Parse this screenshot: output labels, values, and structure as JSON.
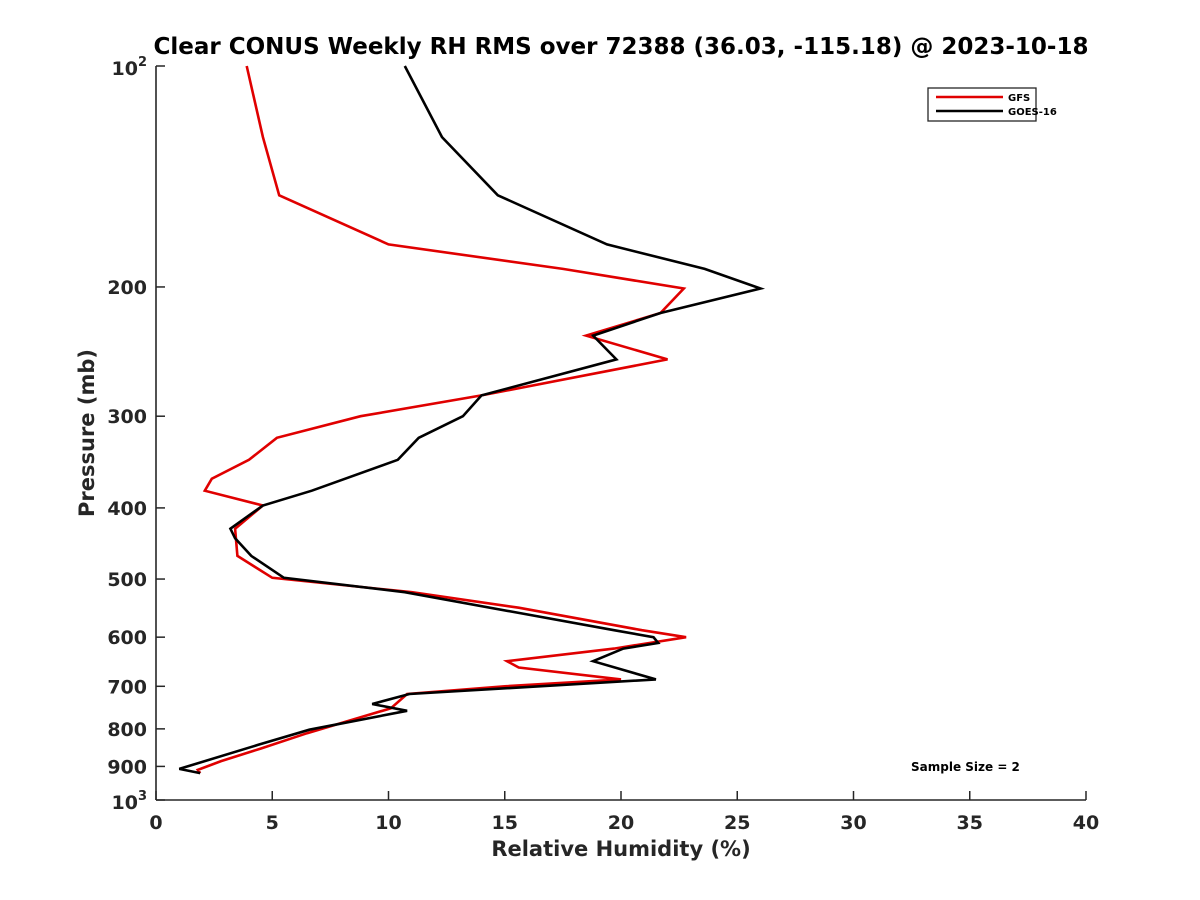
{
  "chart_data": {
    "type": "line",
    "title": "Clear CONUS Weekly RH RMS over 72388 (36.03, -115.18) @ 2023-10-18",
    "xlabel": "Relative Humidity (%)",
    "ylabel": "Pressure (mb)",
    "xlim": [
      0,
      40
    ],
    "ylim": [
      100,
      1000
    ],
    "yscale": "log",
    "y_reversed": true,
    "xticks": [
      0,
      5,
      10,
      15,
      20,
      25,
      30,
      35,
      40
    ],
    "xtick_labels": [
      "0",
      "5",
      "10",
      "15",
      "20",
      "25",
      "30",
      "35",
      "40"
    ],
    "yticks": [
      {
        "value": 100,
        "base": "10",
        "exp": "2"
      },
      {
        "value": 200,
        "label": "200"
      },
      {
        "value": 300,
        "label": "300"
      },
      {
        "value": 400,
        "label": "400"
      },
      {
        "value": 500,
        "label": "500"
      },
      {
        "value": 600,
        "label": "600"
      },
      {
        "value": 700,
        "label": "700"
      },
      {
        "value": 800,
        "label": "800"
      },
      {
        "value": 900,
        "label": "900"
      },
      {
        "value": 1000,
        "base": "10",
        "exp": "3"
      }
    ],
    "grid": false,
    "legend_position": "top-right",
    "annotation": "Sample Size = 2",
    "series": [
      {
        "name": "GFS",
        "color": "#e00000",
        "points": [
          [
            3.9,
            100
          ],
          [
            4.6,
            125
          ],
          [
            5.3,
            150
          ],
          [
            10.0,
            175
          ],
          [
            17.5,
            189
          ],
          [
            22.7,
            201
          ],
          [
            21.7,
            217
          ],
          [
            18.5,
            233
          ],
          [
            22.0,
            251
          ],
          [
            14.0,
            281
          ],
          [
            8.8,
            300
          ],
          [
            5.2,
            321
          ],
          [
            4.0,
            344
          ],
          [
            2.4,
            365
          ],
          [
            2.1,
            379
          ],
          [
            4.6,
            397
          ],
          [
            3.4,
            427
          ],
          [
            3.5,
            465
          ],
          [
            5.0,
            498
          ],
          [
            11.0,
            521
          ],
          [
            15.6,
            547
          ],
          [
            20.9,
            587
          ],
          [
            22.8,
            600
          ],
          [
            19.7,
            622
          ],
          [
            15.1,
            647
          ],
          [
            15.6,
            660
          ],
          [
            20.0,
            685
          ],
          [
            15.0,
            700
          ],
          [
            10.8,
            717
          ],
          [
            10.1,
            750
          ],
          [
            6.5,
            811
          ],
          [
            4.5,
            851
          ],
          [
            2.8,
            885
          ],
          [
            1.8,
            910
          ],
          [
            1.9,
            919
          ]
        ]
      },
      {
        "name": "GOES-16",
        "color": "#000000",
        "points": [
          [
            10.7,
            100
          ],
          [
            12.3,
            125
          ],
          [
            14.7,
            150
          ],
          [
            19.4,
            175
          ],
          [
            23.6,
            189
          ],
          [
            26.0,
            201
          ],
          [
            21.7,
            217
          ],
          [
            18.8,
            233
          ],
          [
            19.8,
            251
          ],
          [
            14.0,
            281
          ],
          [
            13.2,
            300
          ],
          [
            11.3,
            321
          ],
          [
            10.4,
            344
          ],
          [
            6.7,
            379
          ],
          [
            4.6,
            397
          ],
          [
            3.2,
            427
          ],
          [
            3.4,
            440
          ],
          [
            4.1,
            465
          ],
          [
            5.5,
            498
          ],
          [
            10.7,
            521
          ],
          [
            15.6,
            556
          ],
          [
            19.7,
            587
          ],
          [
            21.4,
            600
          ],
          [
            21.6,
            611
          ],
          [
            20.1,
            622
          ],
          [
            18.8,
            647
          ],
          [
            21.5,
            685
          ],
          [
            10.9,
            717
          ],
          [
            9.3,
            740
          ],
          [
            10.8,
            756
          ],
          [
            6.6,
            802
          ],
          [
            4.4,
            841
          ],
          [
            1.0,
            907
          ],
          [
            1.9,
            919
          ]
        ]
      }
    ]
  }
}
